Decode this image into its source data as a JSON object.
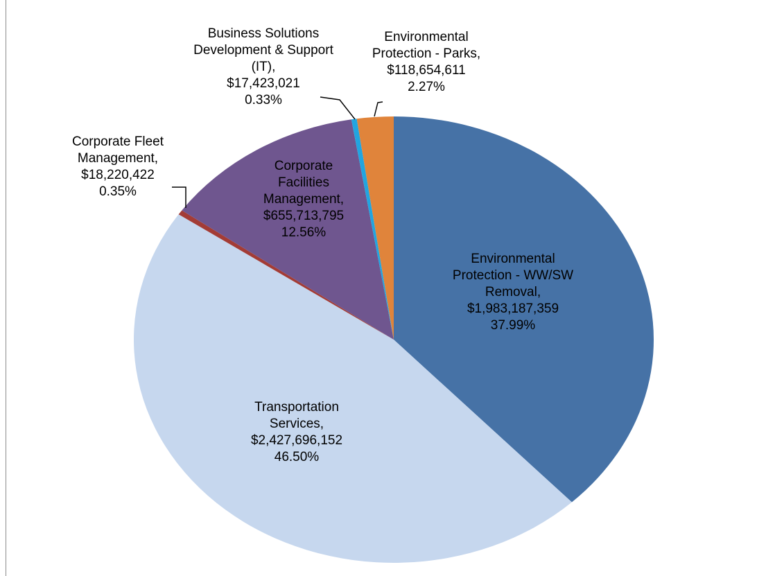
{
  "chart_data": {
    "type": "pie",
    "categories": [
      "Environmental Protection - WW/SW Removal,",
      "Transportation Services,",
      "Corporate Fleet Management,",
      "Corporate Facilities Management,",
      "Business Solutions Development & Support (IT),",
      "Environmental Protection - Parks,"
    ],
    "values": [
      1983187359,
      2427696152,
      18220422,
      655713795,
      17423021,
      118654611
    ],
    "value_labels": [
      "$1,983,187,359",
      "$2,427,696,152",
      "$18,220,422",
      "$655,713,795",
      "$17,423,021",
      "$118,654,611"
    ],
    "percents": [
      37.99,
      46.5,
      0.35,
      12.56,
      0.33,
      2.27
    ],
    "percent_labels": [
      "37.99%",
      "46.50%",
      "0.35%",
      "12.56%",
      "0.33%",
      "2.27%"
    ],
    "colors": [
      "#4672a6",
      "#c6d7ee",
      "#a33c36",
      "#6f568f",
      "#22a5e0",
      "#e0843b"
    ]
  }
}
